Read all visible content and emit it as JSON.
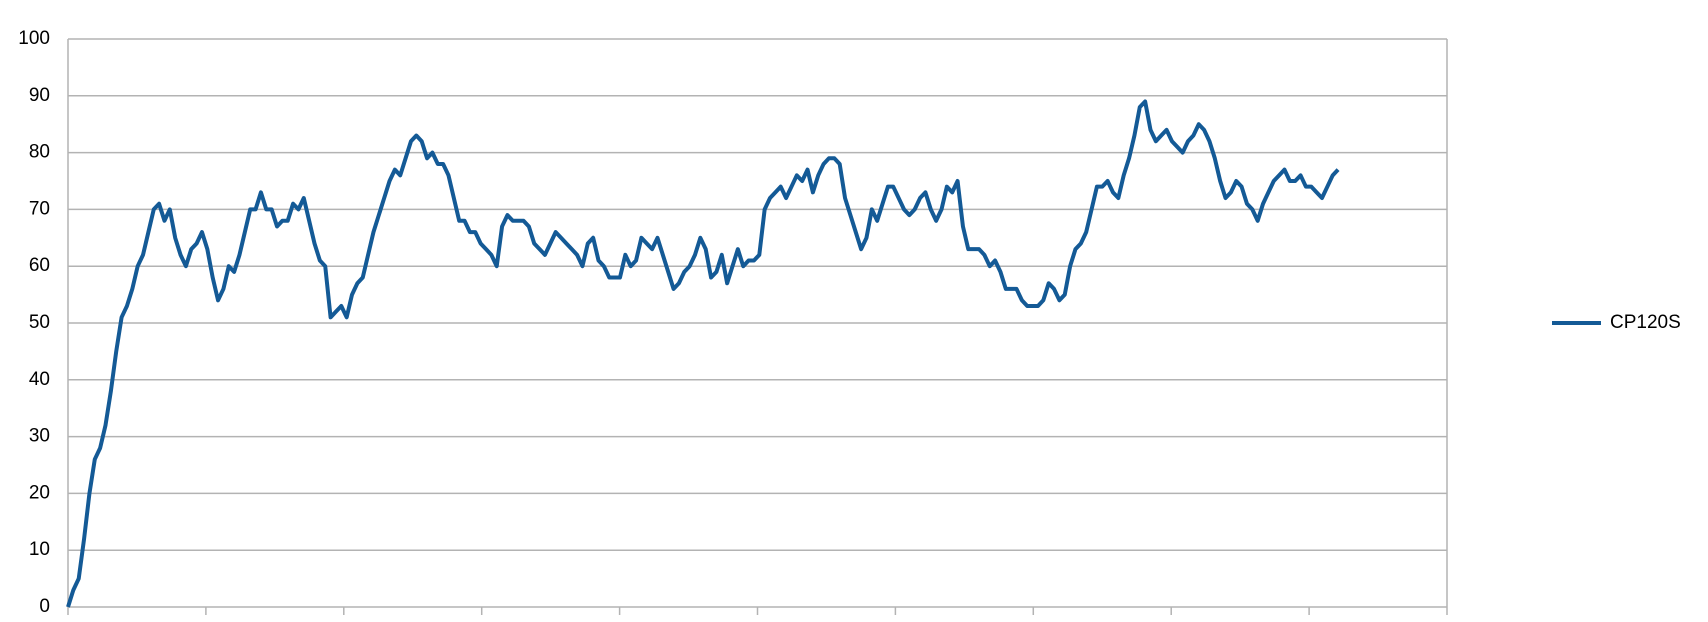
{
  "chart_data": {
    "type": "line",
    "series": [
      {
        "name": "CP120S",
        "color": "#145a96",
        "values": [
          0,
          3,
          5,
          12,
          20,
          26,
          28,
          32,
          38,
          45,
          51,
          53,
          56,
          60,
          62,
          66,
          70,
          71,
          68,
          70,
          65,
          62,
          60,
          63,
          64,
          66,
          63,
          58,
          54,
          56,
          60,
          59,
          62,
          66,
          70,
          70,
          73,
          70,
          70,
          67,
          68,
          68,
          71,
          70,
          72,
          68,
          64,
          61,
          60,
          51,
          52,
          53,
          51,
          55,
          57,
          58,
          62,
          66,
          69,
          72,
          75,
          77,
          76,
          79,
          82,
          83,
          82,
          79,
          80,
          78,
          78,
          76,
          72,
          68,
          68,
          66,
          66,
          64,
          63,
          62,
          60,
          67,
          69,
          68,
          68,
          68,
          67,
          64,
          63,
          62,
          64,
          66,
          65,
          64,
          63,
          62,
          60,
          64,
          65,
          61,
          60,
          58,
          58,
          58,
          62,
          60,
          61,
          65,
          64,
          63,
          65,
          62,
          59,
          56,
          57,
          59,
          60,
          62,
          65,
          63,
          58,
          59,
          62,
          57,
          60,
          63,
          60,
          61,
          61,
          62,
          70,
          72,
          73,
          74,
          72,
          74,
          76,
          75,
          77,
          73,
          76,
          78,
          79,
          79,
          78,
          72,
          69,
          66,
          63,
          65,
          70,
          68,
          71,
          74,
          74,
          72,
          70,
          69,
          70,
          72,
          73,
          70,
          68,
          70,
          74,
          73,
          75,
          67,
          63,
          63,
          63,
          62,
          60,
          61,
          59,
          56,
          56,
          56,
          54,
          53,
          53,
          53,
          54,
          57,
          56,
          54,
          55,
          60,
          63,
          64,
          66,
          70,
          74,
          74,
          75,
          73,
          72,
          76,
          79,
          83,
          88,
          89,
          84,
          82,
          83,
          84,
          82,
          81,
          80,
          82,
          83,
          85,
          84,
          82,
          79,
          75,
          72,
          73,
          75,
          74,
          71,
          70,
          68,
          71,
          73,
          75,
          76,
          77,
          75,
          75,
          76,
          74,
          74,
          73,
          72,
          74,
          76,
          77
        ]
      }
    ],
    "ylim": [
      0,
      100
    ],
    "yticks": [
      0,
      10,
      20,
      30,
      40,
      50,
      60,
      70,
      80,
      90,
      100
    ],
    "grid": true,
    "legend": "right"
  }
}
